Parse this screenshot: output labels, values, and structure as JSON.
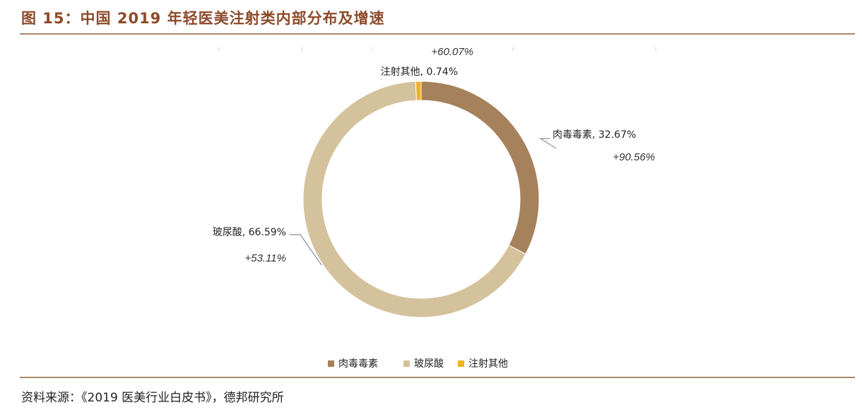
{
  "figure": {
    "title": "图 15：中国 2019 年轻医美注射类内部分布及增速",
    "source": "资料来源：《2019 医美行业白皮书》，德邦研究所"
  },
  "chart_data": {
    "type": "pie",
    "subtype": "donut",
    "title": "",
    "series": [
      {
        "name": "肉毒毒素",
        "share_pct": 32.67,
        "growth_pct": 90.56,
        "label": "肉毒毒素, 32.67%",
        "growth_label": "+90.56%",
        "color": "#a5825b"
      },
      {
        "name": "玻尿酸",
        "share_pct": 66.59,
        "growth_pct": 53.11,
        "label": "玻尿酸, 66.59%",
        "growth_label": "+53.11%",
        "color": "#d4c29d"
      },
      {
        "name": "注射其他",
        "share_pct": 0.74,
        "growth_pct": 60.07,
        "label": "注射其他, 0.74%",
        "growth_label": "+60.07%",
        "color": "#f0b127"
      }
    ],
    "legend": {
      "placement": "bottom",
      "entries": [
        "肉毒毒素",
        "玻尿酸",
        "注射其他"
      ]
    }
  }
}
